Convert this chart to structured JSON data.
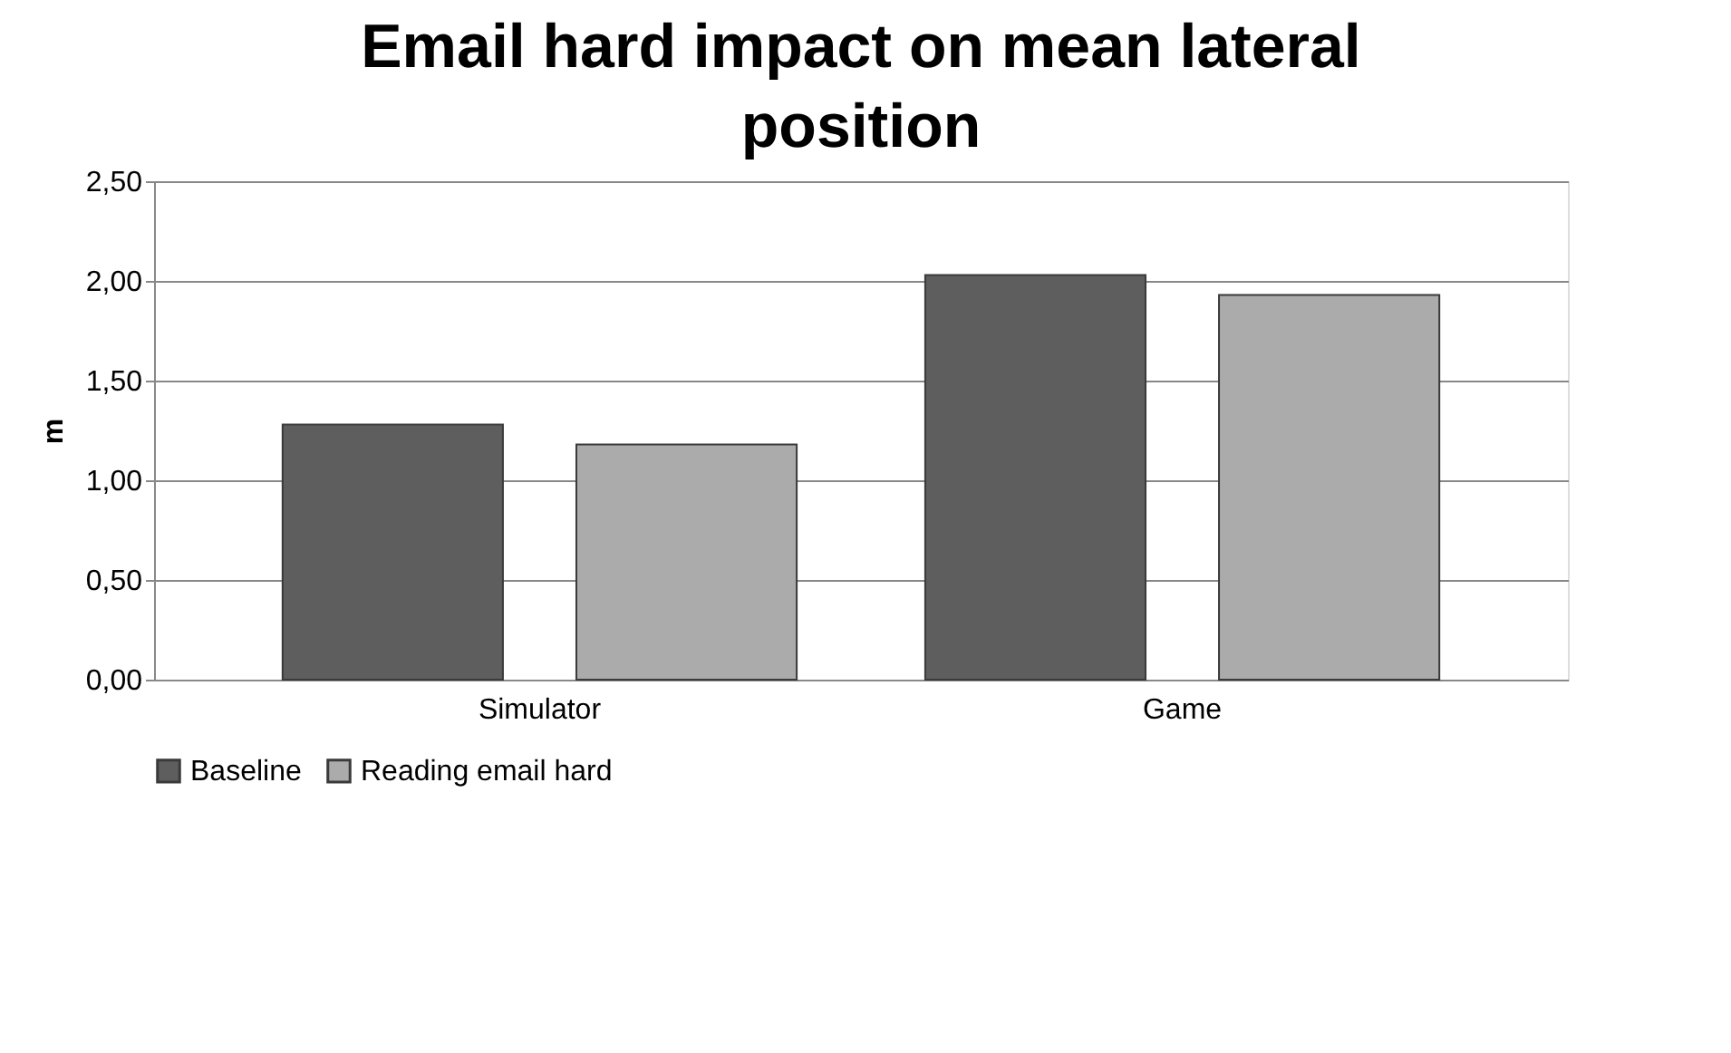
{
  "chart_data": {
    "type": "bar",
    "title": "Email hard impact on mean lateral position",
    "ylabel": "m",
    "categories": [
      "Simulator",
      "Game"
    ],
    "series": [
      {
        "name": "Baseline",
        "color": "#5e5e5e",
        "values": [
          1.28,
          2.03
        ]
      },
      {
        "name": "Reading email hard",
        "color": "#ababab",
        "values": [
          1.18,
          1.93
        ]
      }
    ],
    "ylim": [
      0,
      2.5
    ],
    "yticks": [
      {
        "value": 0,
        "label": "0,00"
      },
      {
        "value": 0.5,
        "label": "0,50"
      },
      {
        "value": 1,
        "label": "1,00"
      },
      {
        "value": 1.5,
        "label": "1,50"
      },
      {
        "value": 2,
        "label": "2,00"
      },
      {
        "value": 2.5,
        "label": "2,50"
      }
    ],
    "grid": "y",
    "legend": "bottom"
  }
}
